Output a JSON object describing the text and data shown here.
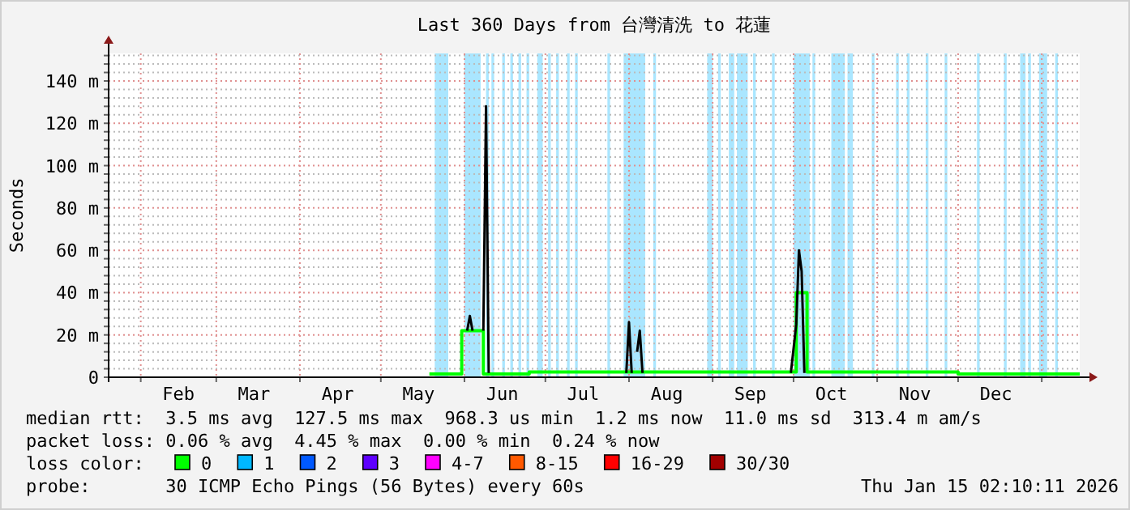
{
  "chart_data": {
    "type": "step",
    "title": "Last 360 Days from 台灣清洗 to 花蓮",
    "ylabel": "Seconds",
    "xlim": [
      "2025-01-20T02:10",
      "2026-01-15T02:10"
    ],
    "xticks": [
      {
        "value": "2025-02-01",
        "label": null
      },
      {
        "value": "2025-02-15",
        "label": "Feb"
      },
      {
        "value": "2025-03-01",
        "label": null
      },
      {
        "value": "2025-03-15",
        "label": "Mar"
      },
      {
        "value": "2025-04-01",
        "label": null
      },
      {
        "value": "2025-04-15",
        "label": "Apr"
      },
      {
        "value": "2025-05-01",
        "label": null
      },
      {
        "value": "2025-05-15",
        "label": "May"
      },
      {
        "value": "2025-06-01",
        "label": null
      },
      {
        "value": "2025-06-15",
        "label": "Jun"
      },
      {
        "value": "2025-07-01",
        "label": null
      },
      {
        "value": "2025-07-15",
        "label": "Jul"
      },
      {
        "value": "2025-08-01",
        "label": null
      },
      {
        "value": "2025-08-15",
        "label": "Aug"
      },
      {
        "value": "2025-09-01",
        "label": null
      },
      {
        "value": "2025-09-15",
        "label": "Sep"
      },
      {
        "value": "2025-10-01",
        "label": null
      },
      {
        "value": "2025-10-15",
        "label": "Oct"
      },
      {
        "value": "2025-11-01",
        "label": null
      },
      {
        "value": "2025-11-15",
        "label": "Nov"
      },
      {
        "value": "2025-12-01",
        "label": null
      },
      {
        "value": "2025-12-15",
        "label": "Dec"
      },
      {
        "value": "2026-01-01",
        "label": null
      }
    ],
    "ylim": [
      0,
      153
    ],
    "yticks": [
      0,
      {
        "value": 4,
        "label": null
      },
      {
        "value": 8,
        "label": null
      },
      {
        "value": 12,
        "label": null
      },
      {
        "value": 16,
        "label": null
      },
      {
        "value": 20,
        "label": "20 m"
      },
      {
        "value": 24,
        "label": null
      },
      {
        "value": 28,
        "label": null
      },
      {
        "value": 32,
        "label": null
      },
      {
        "value": 36,
        "label": null
      },
      {
        "value": 40,
        "label": "40 m"
      },
      {
        "value": 44,
        "label": null
      },
      {
        "value": 48,
        "label": null
      },
      {
        "value": 52,
        "label": null
      },
      {
        "value": 56,
        "label": null
      },
      {
        "value": 60,
        "label": "60 m"
      },
      {
        "value": 64,
        "label": null
      },
      {
        "value": 68,
        "label": null
      },
      {
        "value": 72,
        "label": null
      },
      {
        "value": 76,
        "label": null
      },
      {
        "value": 80,
        "label": "80 m"
      },
      {
        "value": 84,
        "label": null
      },
      {
        "value": 88,
        "label": null
      },
      {
        "value": 92,
        "label": null
      },
      {
        "value": 96,
        "label": null
      },
      {
        "value": 100,
        "label": "100 m"
      },
      {
        "value": 104,
        "label": null
      },
      {
        "value": 108,
        "label": null
      },
      {
        "value": 112,
        "label": null
      },
      {
        "value": 116,
        "label": null
      },
      {
        "value": 120,
        "label": "120 m"
      },
      {
        "value": 124,
        "label": null
      },
      {
        "value": 128,
        "label": null
      },
      {
        "value": 132,
        "label": null
      },
      {
        "value": 136,
        "label": null
      },
      {
        "value": 140,
        "label": "140 m"
      },
      {
        "value": 144,
        "label": null
      },
      {
        "value": 148,
        "label": null
      },
      {
        "value": 152,
        "label": null
      }
    ],
    "grid": true,
    "legend": "bottom",
    "legend_title": "loss color:",
    "series": [
      {
        "name": "0",
        "color": "#00ff00",
        "x": [
          "2025-05-19",
          "2025-05-31",
          "2025-06-08",
          "2025-06-25",
          "2025-10-02",
          "2025-10-06",
          "2025-12-01",
          "2026-01-14"
        ],
        "values": [
          1.5,
          22,
          1.5,
          2.5,
          40,
          2.5,
          1.5,
          1.5
        ]
      },
      {
        "type": "line",
        "color": "#000000",
        "x": [
          "2025-06-02",
          "2025-06-03",
          "2025-06-04",
          "2025-06-05",
          "2025-06-08",
          "2025-06-09",
          "2025-06-10",
          "2025-06-11",
          "2025-07-31",
          "2025-08-01",
          "2025-08-02",
          "2025-08-03",
          "2025-08-04",
          "2025-08-05",
          "2025-08-06",
          "2025-08-07",
          "2025-09-30",
          "2025-10-02",
          "2025-10-03",
          "2025-10-04",
          "2025-10-05"
        ],
        "values": [
          22,
          29,
          22,
          null,
          22,
          128,
          2,
          null,
          2,
          26,
          2,
          null,
          12,
          22,
          2,
          null,
          2,
          25,
          60,
          50,
          2
        ]
      },
      {
        "name": "1",
        "color": "#00b8ff"
      },
      {
        "name": "2",
        "color": "#0059ff"
      },
      {
        "name": "3",
        "color": "#5e00ff"
      },
      {
        "name": "4-7",
        "color": "#ff00ff"
      },
      {
        "name": "8-15",
        "color": "#ff5900"
      },
      {
        "name": "16-29",
        "color": "#ff0000"
      },
      {
        "name": "30/30",
        "color": "#a10000"
      }
    ],
    "bands": [
      {
        "axis": "x",
        "from": "2025-05-21",
        "to": "2025-05-26",
        "color": "#aae6ff"
      },
      {
        "axis": "x",
        "from": "2025-06-01",
        "to": "2025-06-07",
        "color": "#aae6ff"
      },
      {
        "axis": "x",
        "from": "2025-06-09",
        "to": "2025-06-10",
        "color": "#aae6ff"
      },
      {
        "axis": "x",
        "from": "2025-06-11",
        "to": "2025-06-12",
        "color": "#aae6ff"
      },
      {
        "axis": "x",
        "from": "2025-06-15",
        "to": "2025-06-16",
        "color": "#aae6ff"
      },
      {
        "axis": "x",
        "from": "2025-06-18",
        "to": "2025-06-19",
        "color": "#aae6ff"
      },
      {
        "axis": "x",
        "from": "2025-06-21",
        "to": "2025-06-22",
        "color": "#aae6ff"
      },
      {
        "axis": "x",
        "from": "2025-06-24",
        "to": "2025-06-25",
        "color": "#aae6ff"
      },
      {
        "axis": "x",
        "from": "2025-06-28",
        "to": "2025-06-30",
        "color": "#aae6ff"
      },
      {
        "axis": "x",
        "from": "2025-07-02",
        "to": "2025-07-03",
        "color": "#aae6ff"
      },
      {
        "axis": "x",
        "from": "2025-07-05",
        "to": "2025-07-06",
        "color": "#aae6ff"
      },
      {
        "axis": "x",
        "from": "2025-07-09",
        "to": "2025-07-10",
        "color": "#aae6ff"
      },
      {
        "axis": "x",
        "from": "2025-07-12",
        "to": "2025-07-13",
        "color": "#aae6ff"
      },
      {
        "axis": "x",
        "from": "2025-07-24",
        "to": "2025-07-25",
        "color": "#aae6ff"
      },
      {
        "axis": "x",
        "from": "2025-07-30",
        "to": "2025-08-07",
        "color": "#aae6ff"
      },
      {
        "axis": "x",
        "from": "2025-08-10",
        "to": "2025-08-11",
        "color": "#aae6ff"
      },
      {
        "axis": "x",
        "from": "2025-08-30",
        "to": "2025-09-01",
        "color": "#aae6ff"
      },
      {
        "axis": "x",
        "from": "2025-09-03",
        "to": "2025-09-04",
        "color": "#aae6ff"
      },
      {
        "axis": "x",
        "from": "2025-09-07",
        "to": "2025-09-09",
        "color": "#aae6ff"
      },
      {
        "axis": "x",
        "from": "2025-09-10",
        "to": "2025-09-14",
        "color": "#aae6ff"
      },
      {
        "axis": "x",
        "from": "2025-09-16",
        "to": "2025-09-17",
        "color": "#aae6ff"
      },
      {
        "axis": "x",
        "from": "2025-09-23",
        "to": "2025-09-24",
        "color": "#aae6ff"
      },
      {
        "axis": "x",
        "from": "2025-10-01",
        "to": "2025-10-07",
        "color": "#aae6ff"
      },
      {
        "axis": "x",
        "from": "2025-10-08",
        "to": "2025-10-09",
        "color": "#aae6ff"
      },
      {
        "axis": "x",
        "from": "2025-10-15",
        "to": "2025-10-20",
        "color": "#aae6ff"
      },
      {
        "axis": "x",
        "from": "2025-10-21",
        "to": "2025-10-23",
        "color": "#aae6ff"
      },
      {
        "axis": "x",
        "from": "2025-10-30",
        "to": "2025-10-31",
        "color": "#aae6ff"
      },
      {
        "axis": "x",
        "from": "2025-11-08",
        "to": "2025-11-09",
        "color": "#aae6ff"
      },
      {
        "axis": "x",
        "from": "2025-11-12",
        "to": "2025-11-13",
        "color": "#aae6ff"
      },
      {
        "axis": "x",
        "from": "2025-11-19",
        "to": "2025-11-20",
        "color": "#aae6ff"
      },
      {
        "axis": "x",
        "from": "2025-11-26",
        "to": "2025-11-27",
        "color": "#aae6ff"
      },
      {
        "axis": "x",
        "from": "2025-12-08",
        "to": "2025-12-09",
        "color": "#aae6ff"
      },
      {
        "axis": "x",
        "from": "2025-12-18",
        "to": "2025-12-19",
        "color": "#aae6ff"
      },
      {
        "axis": "x",
        "from": "2025-12-24",
        "to": "2025-12-26",
        "color": "#aae6ff"
      },
      {
        "axis": "x",
        "from": "2025-12-27",
        "to": "2025-12-28",
        "color": "#aae6ff"
      },
      {
        "axis": "x",
        "from": "2025-12-31",
        "to": "2026-01-03",
        "color": "#aae6ff"
      },
      {
        "axis": "x",
        "from": "2026-01-06",
        "to": "2026-01-07",
        "color": "#aae6ff"
      }
    ],
    "annotations": [
      "median rtt:  3.5 ms avg  127.5 ms max  968.3 us min  1.2 ms now  11.0 ms sd  313.4 m am/s",
      "packet loss: 0.06 % avg  4.45 % max  0.00 % min  0.24 % now",
      "probe:       30 ICMP Echo Pings (56 Bytes) every 60s",
      "Thu Jan 15 02:10:11 2026"
    ]
  }
}
